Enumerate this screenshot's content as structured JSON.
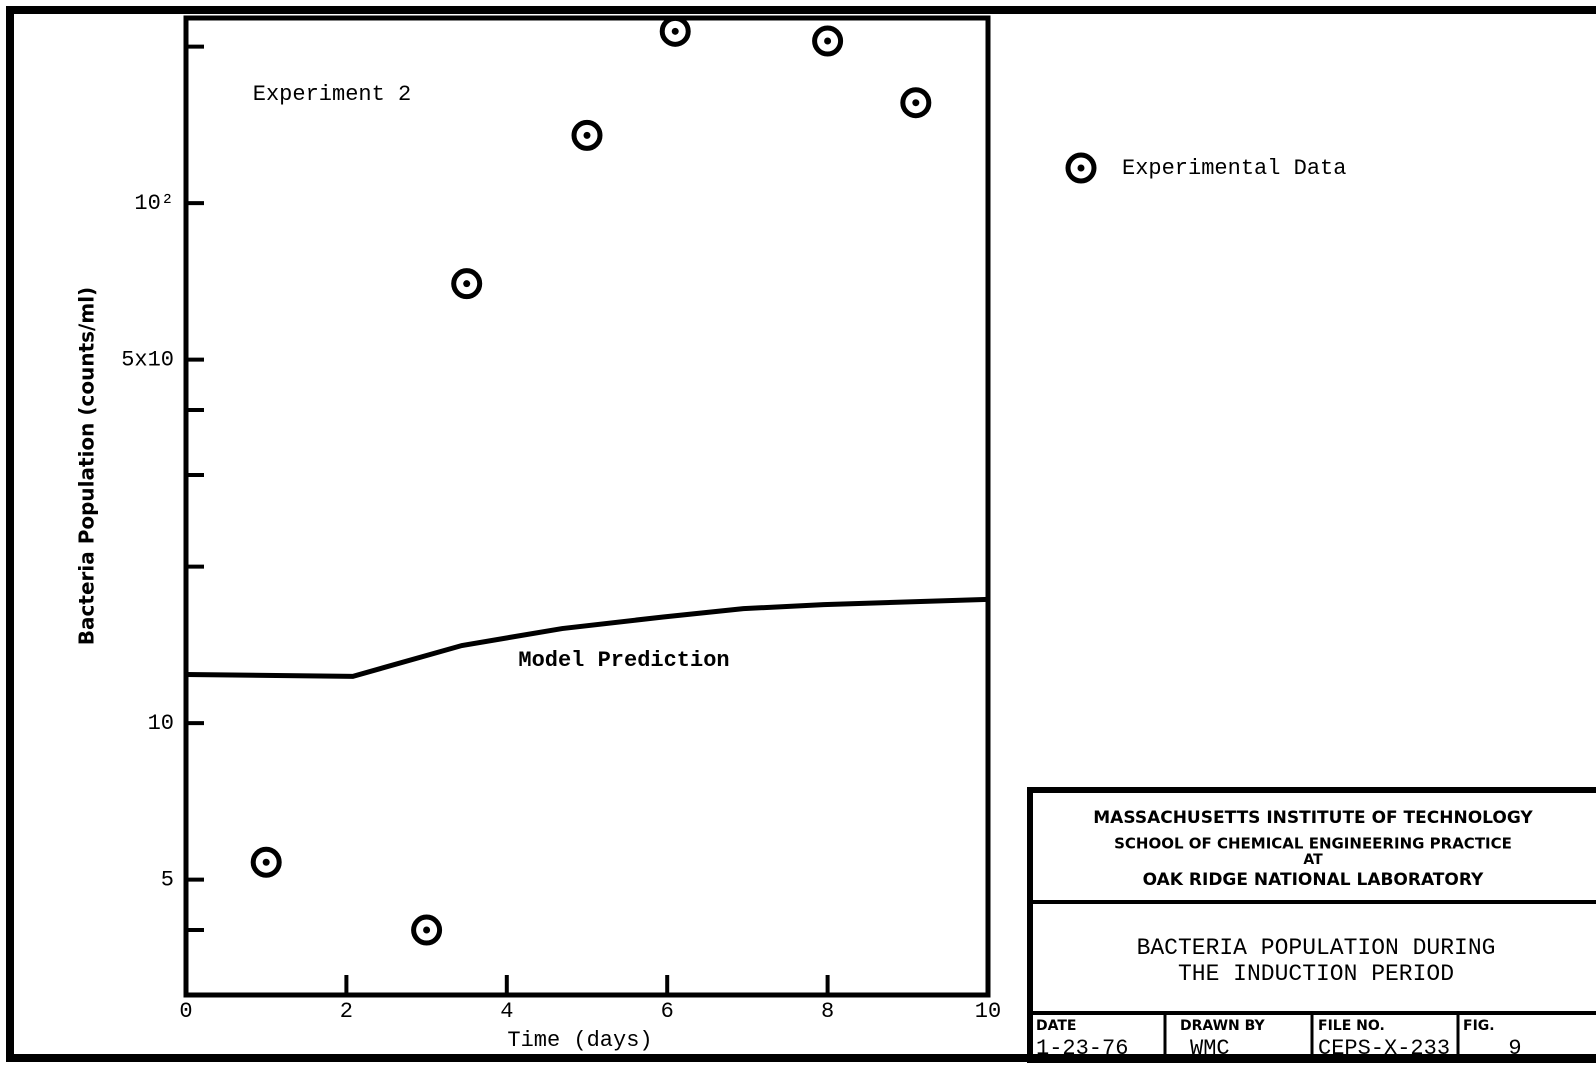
{
  "chart_data": {
    "type": "scatter",
    "xlabel": "Time (days)",
    "ylabel": "Bacteria Population (counts/ml)",
    "annotations": [
      "Experiment 2",
      "Model Prediction"
    ],
    "log_y": true,
    "xlim": [
      0,
      10
    ],
    "xticks": [
      0,
      2,
      4,
      6,
      8,
      10
    ],
    "ylim": [
      3,
      227
    ],
    "yticks": [
      5,
      10,
      {
        "value": 50,
        "label": "5x10"
      },
      {
        "value": 100,
        "label": "10²"
      }
    ],
    "yminor_ticks": [
      4,
      20,
      30,
      40,
      200
    ],
    "grid": false,
    "legend": "upper right outside",
    "series": [
      {
        "name": "Experimental Data",
        "style": "points",
        "color": "#000000",
        "x": [
          1,
          3,
          3.5,
          5,
          6.1,
          8,
          9.1
        ],
        "values": [
          5.4,
          4.0,
          70,
          135,
          214,
          205,
          156
        ]
      },
      {
        "style": "line",
        "color": "#000000",
        "x": [
          0,
          2.08,
          3.44,
          4.69,
          5.95,
          6.95,
          7.95,
          10
        ],
        "values": [
          12.4,
          12.3,
          14.1,
          15.2,
          16.0,
          16.6,
          16.9,
          17.3
        ]
      }
    ],
    "title_block": {
      "institution": [
        "MASSACHUSETTS INSTITUTE OF TECHNOLOGY",
        "SCHOOL OF CHEMICAL ENGINEERING PRACTICE",
        "AT",
        "OAK RIDGE NATIONAL LABORATORY"
      ],
      "title": [
        "BACTERIA POPULATION DURING",
        "THE INDUCTION PERIOD"
      ],
      "fields": [
        {
          "label": "DATE",
          "value": "1-23-76"
        },
        {
          "label": "DRAWN BY",
          "value": "WMC"
        },
        {
          "label": "FILE NO.",
          "value": "CEPS-X-233"
        },
        {
          "label": "FIG.",
          "value": "9"
        }
      ]
    }
  }
}
